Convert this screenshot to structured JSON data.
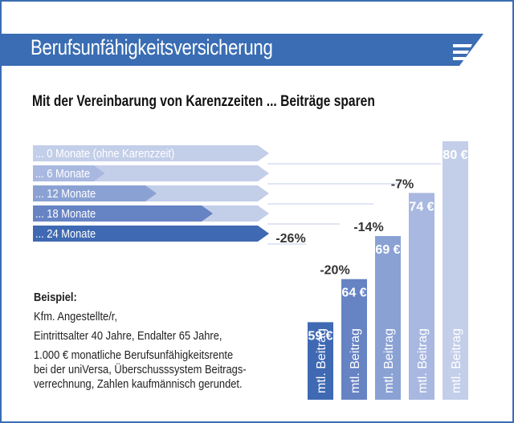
{
  "header": {
    "title": "Berufsunfähigkeitsversicherung",
    "subtitle": "Mit der Vereinbarung von Karenzzeiten ... Beiträge sparen",
    "logo_icon": "stylized-e-logo-icon"
  },
  "colors": {
    "brand_blue": "#3a6db3",
    "shade_0": "#c3cee9",
    "shade_6": "#a8b8e0",
    "shade_12": "#8aa1d4",
    "shade_18": "#6683c4",
    "shade_24": "#3f69b3"
  },
  "example": {
    "heading": "Beispiel:",
    "lines": [
      "Kfm. Angestellte/r,",
      "Eintrittsalter 40 Jahre, Endalter 65 Jahre,",
      "1.000 € monatliche Berufsunfähigkeitsrente",
      "bei der uniVersa, Überschusssystem Beitrags-",
      "verrechnung, Zahlen kaufmännisch gerundet."
    ]
  },
  "chart_data": {
    "type": "bar",
    "title": "Mit der Vereinbarung von Karenzzeiten ... Beiträge sparen",
    "categories": [
      "... 24 Monate",
      "... 18 Monate",
      "... 12 Monate",
      "...  6 Monate",
      "...  0 Monate (ohne Karenzzeit)"
    ],
    "series": [
      {
        "name": "mtl. Beitrag",
        "values": [
          59,
          64,
          69,
          74,
          80
        ],
        "unit": "€"
      }
    ],
    "value_labels": [
      "59 €",
      "64 €",
      "69 €",
      "74 €",
      "80 €"
    ],
    "savings_labels": [
      "-26%",
      "-20%",
      "-14%",
      "-7%",
      ""
    ],
    "savings_percent": [
      -26,
      -20,
      -14,
      -7,
      0
    ],
    "arrow_fill_fraction": [
      1.0,
      0.75,
      0.5,
      0.27,
      0.0
    ],
    "bar_caption": "mtl. Beitrag",
    "xlabel": "",
    "ylabel": "mtl. Beitrag (€)"
  }
}
